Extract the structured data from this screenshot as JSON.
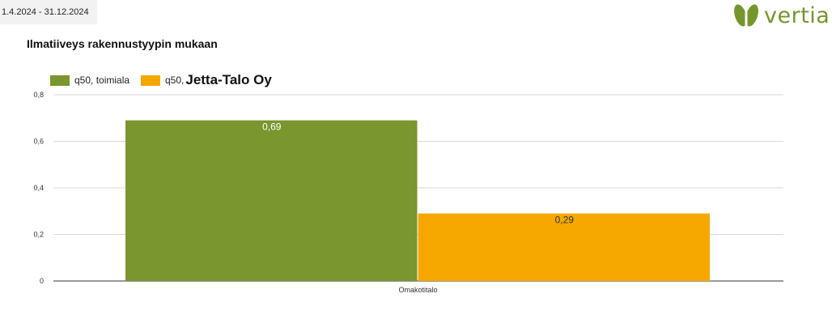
{
  "header": {
    "date_range": "1.4.2024 - 31.12.2024",
    "logo_text": "vertia"
  },
  "colors": {
    "brand": "#76962d",
    "series_1": "#7a962e",
    "series_2": "#f6a800",
    "grid": "#d9d9d9"
  },
  "chart_data": {
    "type": "bar",
    "title": "Ilmatiiveys rakennustyypin mukaan",
    "categories": [
      "Omakotitalo"
    ],
    "series": [
      {
        "name": "q50, toimiala",
        "values": [
          0.69
        ],
        "labels": [
          "0,69"
        ]
      },
      {
        "name_prefix": "q50,",
        "name_strong": "Jetta-Talo Oy",
        "values": [
          0.29
        ],
        "labels": [
          "0,29"
        ]
      }
    ],
    "ylim": [
      0,
      0.8
    ],
    "yticks": [
      0,
      0.2,
      0.4,
      0.6,
      0.8
    ],
    "ytick_labels": [
      "0",
      "0,2",
      "0,4",
      "0,6",
      "0,8"
    ],
    "grid": true,
    "legend_position": "top-left",
    "xlabel": "",
    "ylabel": ""
  }
}
